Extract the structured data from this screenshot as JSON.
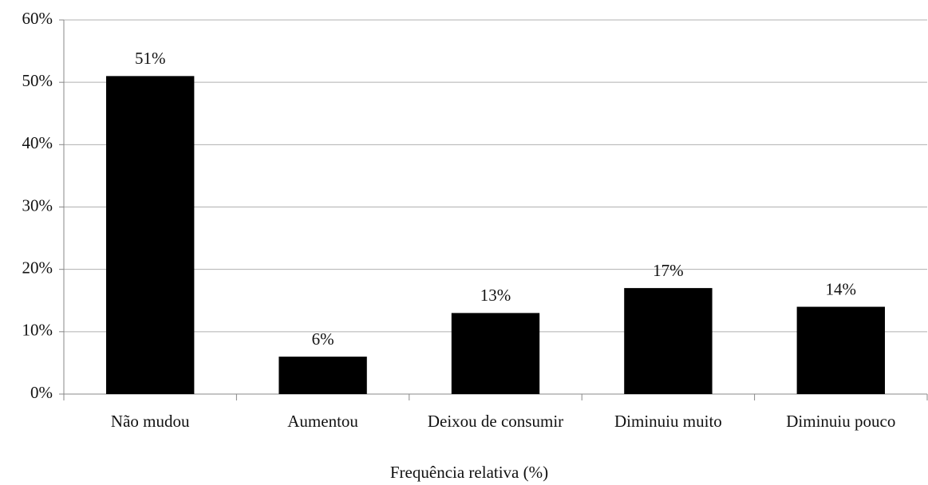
{
  "chart_data": {
    "type": "bar",
    "xlabel": "Frequência relativa (%)",
    "categories": [
      "Não mudou",
      "Aumentou",
      "Deixou de consumir",
      "Diminuiu muito",
      "Diminuiu pouco"
    ],
    "values": [
      51,
      6,
      13,
      17,
      14
    ],
    "value_labels": [
      "51%",
      "6%",
      "13%",
      "17%",
      "14%"
    ],
    "color": "#000000",
    "ylim": [
      0,
      60
    ],
    "yticks": [
      {
        "value": 0,
        "label": "0%"
      },
      {
        "value": 10,
        "label": "10%"
      },
      {
        "value": 20,
        "label": "20%"
      },
      {
        "value": 30,
        "label": "30%"
      },
      {
        "value": 40,
        "label": "40%"
      },
      {
        "value": 50,
        "label": "50%"
      },
      {
        "value": 60,
        "label": "60%"
      }
    ],
    "grid": true
  }
}
